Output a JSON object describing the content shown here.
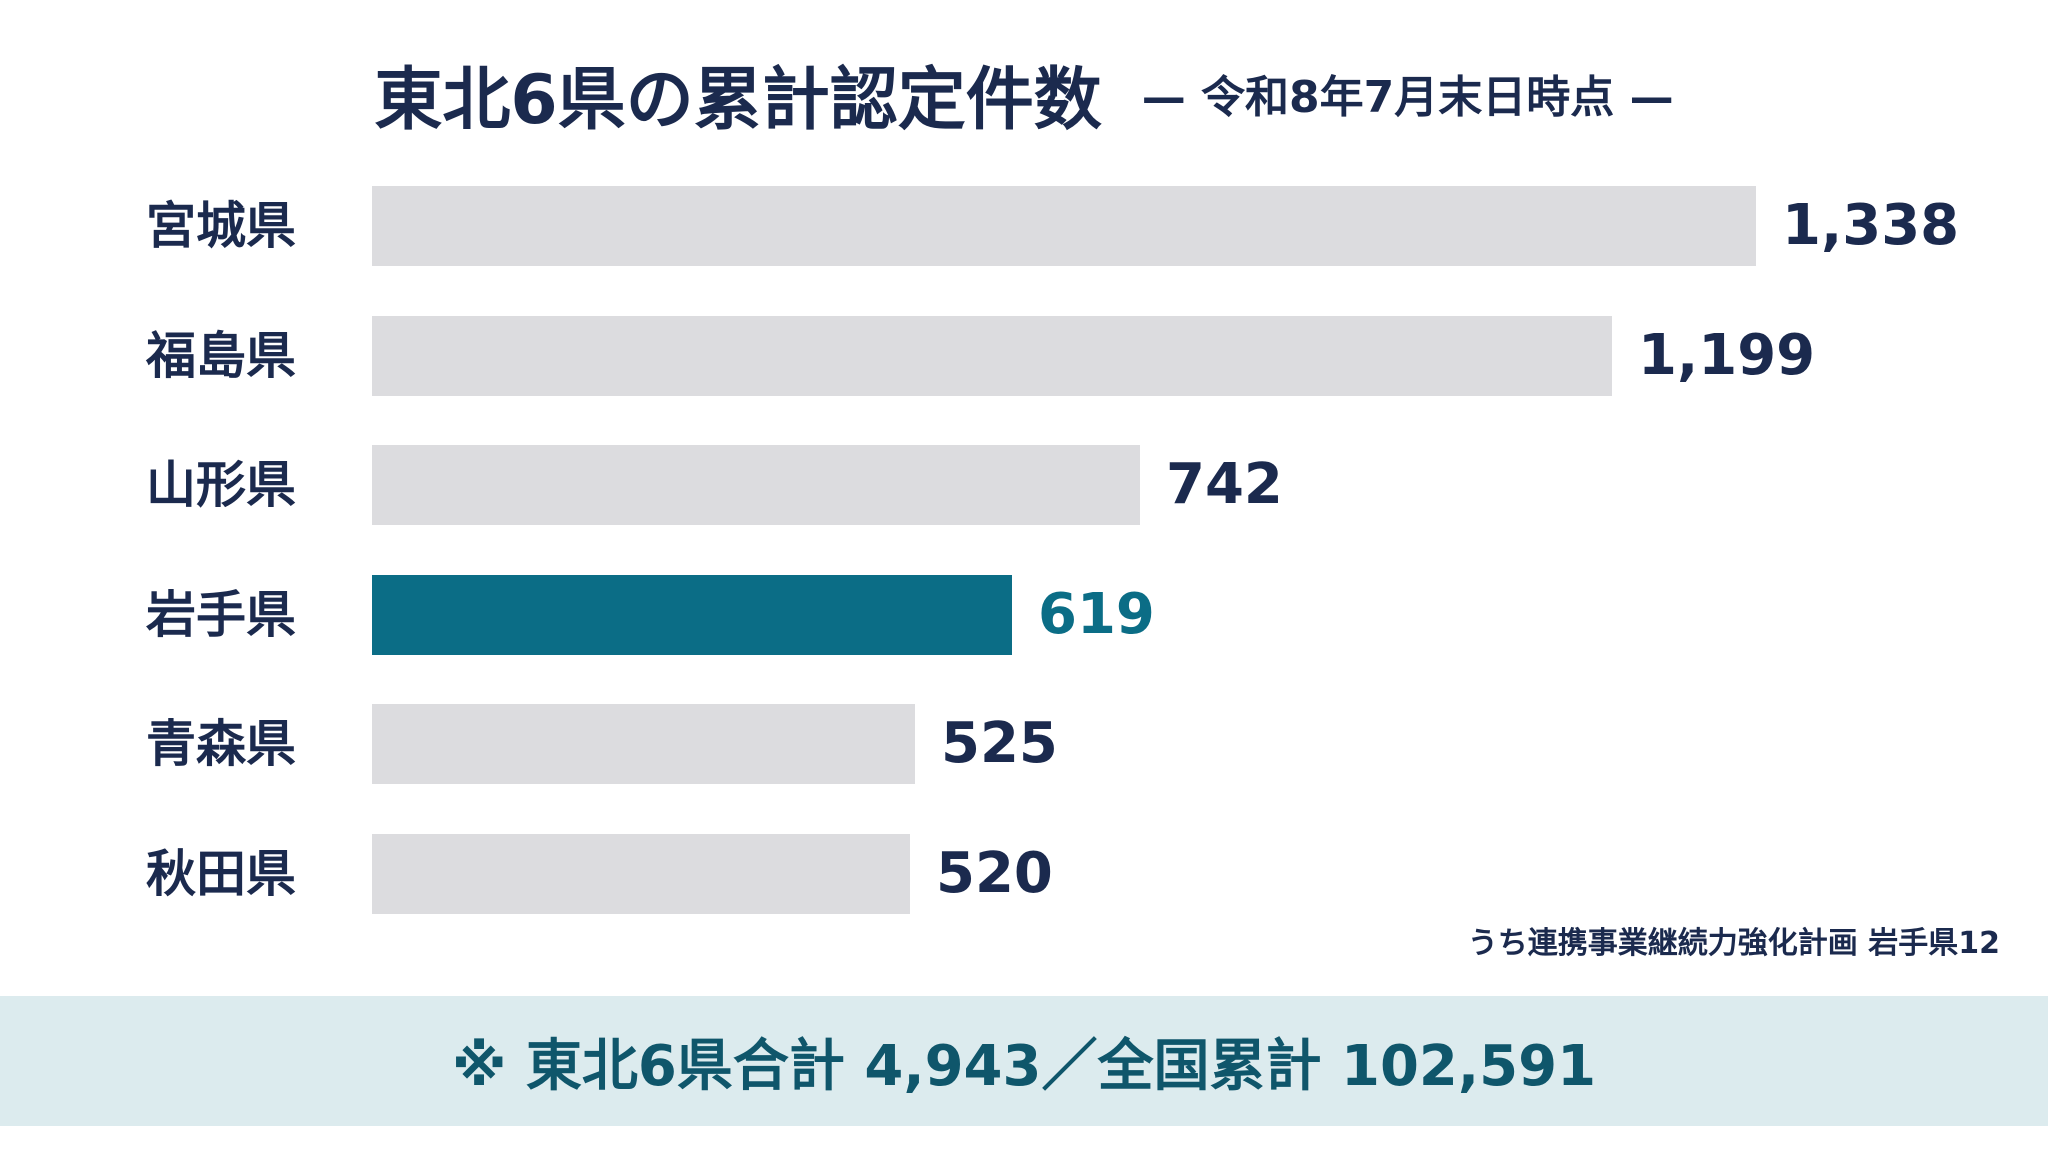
{
  "header": {
    "title": "東北6県の累計認定件数",
    "subtitle": "— 令和8年7月末日時点 —"
  },
  "colors": {
    "bar_default": "#dcdcdf",
    "bar_highlight": "#0b6d86",
    "text_dark": "#1b2a4e",
    "summary_bg": "#dcebee"
  },
  "chart_data": {
    "type": "bar",
    "orientation": "horizontal",
    "title": "東北6県の累計認定件数",
    "subtitle": "— 令和8年7月末日時点 —",
    "categories": [
      "宮城県",
      "福島県",
      "山形県",
      "岩手県",
      "青森県",
      "秋田県"
    ],
    "values": [
      1338,
      1199,
      742,
      619,
      525,
      520
    ],
    "value_labels": [
      "1,338",
      "1,199",
      "742",
      "619",
      "525",
      "520"
    ],
    "highlight": "岩手県",
    "xlim": [
      0,
      1338
    ],
    "grid": false,
    "legend": "none"
  },
  "note": "うち連携事業継続力強化計画 岩手県12",
  "summary": "※ 東北6県合計 4,943／全国累計 102,591"
}
